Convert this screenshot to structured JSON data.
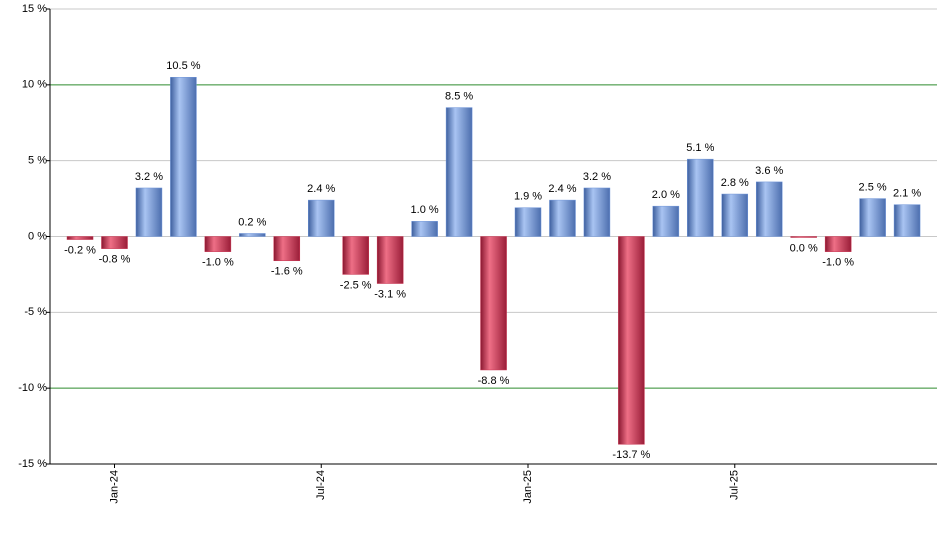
{
  "chart_data": {
    "type": "bar",
    "categories": [
      null,
      "Jan-24",
      null,
      null,
      null,
      null,
      null,
      "Jul-24",
      null,
      null,
      null,
      null,
      null,
      "Jan-25",
      null,
      null,
      null,
      null,
      null,
      "Jul-25",
      null,
      null,
      null,
      null,
      null
    ],
    "values": [
      -0.2,
      -0.8,
      3.2,
      10.5,
      -1.0,
      0.2,
      -1.6,
      2.4,
      -2.5,
      -3.1,
      1.0,
      8.5,
      -8.8,
      1.9,
      2.4,
      3.2,
      -13.7,
      2.0,
      5.1,
      2.8,
      3.6,
      0.0,
      -1.0,
      2.5,
      2.1
    ],
    "value_labels": [
      "-0.2 %",
      "-0.8 %",
      "3.2 %",
      "10.5 %",
      "-1.0 %",
      "0.2 %",
      "-1.6 %",
      "2.4 %",
      "-2.5 %",
      "-3.1 %",
      "1.0 %",
      "8.5 %",
      "-8.8 %",
      "1.9 %",
      "2.4 %",
      "3.2 %",
      "-13.7 %",
      "2.0 %",
      "5.1 %",
      "2.8 %",
      "3.6 %",
      "0.0 %",
      "-1.0 %",
      "2.5 %",
      "2.1 %"
    ],
    "colors": {
      "positive": "#6f95d9",
      "negative": "#c8324f"
    },
    "ylim": [
      -15,
      15
    ],
    "yticks": [
      {
        "value": -15,
        "label": "-15 %"
      },
      {
        "value": -10,
        "label": "-10 %"
      },
      {
        "value": -5,
        "label": "-5 %"
      },
      {
        "value": 0,
        "label": "0 %"
      },
      {
        "value": 5,
        "label": "5 %"
      },
      {
        "value": 10,
        "label": "10 %"
      },
      {
        "value": 15,
        "label": "15 %"
      }
    ],
    "grid": true
  }
}
